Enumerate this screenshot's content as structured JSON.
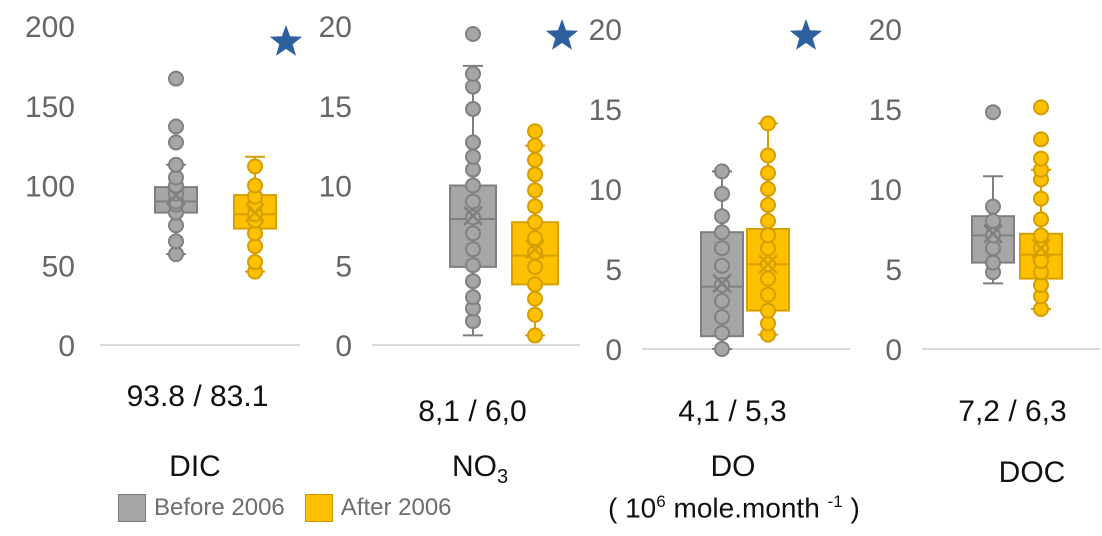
{
  "colors": {
    "before": "#a6a6a6",
    "after": "#ffc000",
    "star": "#2e5f9e",
    "axis": "#d9d9d9",
    "tick_text": "#666666"
  },
  "legend": {
    "before_label": "Before 2006",
    "after_label": "After 2006"
  },
  "unit_label": {
    "prefix": "( 10",
    "exp": "6",
    "mid": " mole.month ",
    "exp2": "-1",
    "suffix": " )"
  },
  "chart_data": [
    {
      "type": "box",
      "variable": "DIC",
      "means_text": "93.8 / 83.1",
      "ylim": [
        0,
        200
      ],
      "yticks": [
        0,
        50,
        100,
        150,
        200
      ],
      "star": true,
      "series": [
        {
          "name": "Before 2006",
          "min": 57,
          "q1": 83,
          "median": 90,
          "q3": 99,
          "max": 113,
          "mean": 93.8,
          "points": [
            57,
            65,
            75,
            83,
            88,
            90,
            95,
            100,
            105,
            113,
            127,
            137,
            167
          ]
        },
        {
          "name": "After 2006",
          "min": 46,
          "q1": 73,
          "median": 82,
          "q3": 94,
          "max": 118,
          "mean": 83.1,
          "points": [
            46,
            52,
            62,
            70,
            78,
            82,
            88,
            93,
            100,
            112
          ]
        }
      ]
    },
    {
      "type": "box",
      "variable": "NO3",
      "means_text": "8,1 / 6,0",
      "ylim": [
        0,
        20
      ],
      "yticks": [
        0,
        5,
        10,
        15,
        20
      ],
      "star": true,
      "series": [
        {
          "name": "Before 2006",
          "min": 0.6,
          "q1": 4.9,
          "median": 7.9,
          "q3": 10.0,
          "max": 17.5,
          "mean": 8.1,
          "points": [
            1.5,
            2.3,
            3.0,
            4.0,
            5.0,
            6.0,
            7.0,
            8.0,
            9.0,
            10.0,
            11.0,
            11.8,
            12.7,
            14.8,
            16.2,
            17.0,
            19.5
          ]
        },
        {
          "name": "After 2006",
          "min": 0.6,
          "q1": 3.8,
          "median": 5.6,
          "q3": 7.7,
          "max": 12.5,
          "mean": 6.0,
          "points": [
            0.6,
            1.9,
            2.9,
            3.8,
            4.9,
            5.8,
            6.7,
            7.7,
            8.7,
            9.7,
            10.7,
            11.6,
            12.5,
            13.4
          ]
        }
      ]
    },
    {
      "type": "box",
      "variable": "DO",
      "means_text": "4,1 / 5,3",
      "ylim": [
        0,
        20
      ],
      "yticks": [
        0,
        5,
        10,
        15,
        20
      ],
      "star": true,
      "series": [
        {
          "name": "Before 2006",
          "min": 0,
          "q1": 0.8,
          "median": 3.9,
          "q3": 7.3,
          "max": 11.1,
          "mean": 4.1,
          "points": [
            0,
            1.0,
            2.0,
            3.0,
            4.0,
            5.2,
            6.3,
            7.3,
            8.3,
            9.7,
            11.1
          ]
        },
        {
          "name": "After 2006",
          "min": 0.9,
          "q1": 2.4,
          "median": 5.3,
          "q3": 7.5,
          "max": 14.1,
          "mean": 5.3,
          "points": [
            0.9,
            1.6,
            2.4,
            3.4,
            4.4,
            5.3,
            6.3,
            7.1,
            8.0,
            9.0,
            10.0,
            11.0,
            12.1,
            14.1
          ]
        }
      ]
    },
    {
      "type": "box",
      "variable": "DOC",
      "means_text": "7,2 / 6,3",
      "ylim": [
        0,
        20
      ],
      "yticks": [
        0,
        5,
        10,
        15,
        20
      ],
      "star": false,
      "series": [
        {
          "name": "Before 2006",
          "min": 4.1,
          "q1": 5.4,
          "median": 7.1,
          "q3": 8.3,
          "max": 10.8,
          "mean": 7.2,
          "points": [
            4.8,
            5.4,
            6.3,
            7.1,
            8.0,
            8.9,
            14.8
          ]
        },
        {
          "name": "After 2006",
          "min": 2.5,
          "q1": 4.4,
          "median": 5.9,
          "q3": 7.2,
          "max": 11.2,
          "mean": 6.3,
          "points": [
            2.5,
            3.3,
            4.0,
            4.8,
            5.5,
            6.3,
            7.1,
            8.1,
            9.4,
            10.6,
            11.2,
            11.9,
            13.1,
            15.1
          ]
        }
      ]
    }
  ]
}
